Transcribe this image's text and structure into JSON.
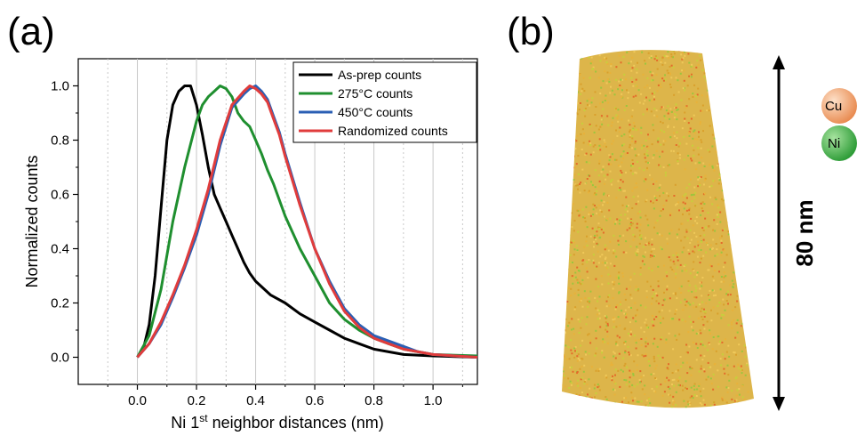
{
  "panels": {
    "a_label": "(a)",
    "b_label": "(b)"
  },
  "chart_data": {
    "type": "line",
    "xlabel_main": "Ni 1",
    "xlabel_sup": "st",
    "xlabel_rest": " neighbor distances (nm)",
    "ylabel": "Normalized counts",
    "xlim": [
      -0.2,
      1.15
    ],
    "ylim": [
      -0.1,
      1.1
    ],
    "xticks": [
      0.0,
      0.2,
      0.4,
      0.6,
      0.8,
      1.0
    ],
    "xtick_labels": [
      "0.0",
      "0.2",
      "0.4",
      "0.6",
      "0.8",
      "1.0"
    ],
    "yticks": [
      0.0,
      0.2,
      0.4,
      0.6,
      0.8,
      1.0
    ],
    "ytick_labels": [
      "0.0",
      "0.2",
      "0.4",
      "0.6",
      "0.8",
      "1.0"
    ],
    "grid": "vertical",
    "legend_position": "top-right",
    "series": [
      {
        "name": "As-prep counts",
        "color": "#000000",
        "x": [
          0.0,
          0.02,
          0.04,
          0.06,
          0.08,
          0.1,
          0.12,
          0.14,
          0.16,
          0.18,
          0.2,
          0.22,
          0.24,
          0.26,
          0.28,
          0.3,
          0.32,
          0.34,
          0.36,
          0.38,
          0.4,
          0.45,
          0.5,
          0.55,
          0.6,
          0.65,
          0.7,
          0.75,
          0.8,
          0.85,
          0.9,
          1.0,
          1.15
        ],
        "y": [
          0.0,
          0.03,
          0.12,
          0.3,
          0.55,
          0.8,
          0.93,
          0.98,
          1.0,
          1.0,
          0.93,
          0.82,
          0.7,
          0.6,
          0.55,
          0.5,
          0.45,
          0.4,
          0.35,
          0.31,
          0.28,
          0.23,
          0.2,
          0.16,
          0.13,
          0.1,
          0.07,
          0.05,
          0.03,
          0.02,
          0.01,
          0.005,
          0.0
        ]
      },
      {
        "name": "275°C counts",
        "color": "#1f8f2f",
        "x": [
          0.0,
          0.04,
          0.08,
          0.12,
          0.16,
          0.2,
          0.22,
          0.24,
          0.26,
          0.28,
          0.3,
          0.32,
          0.34,
          0.36,
          0.38,
          0.4,
          0.42,
          0.44,
          0.46,
          0.5,
          0.55,
          0.6,
          0.65,
          0.7,
          0.75,
          0.8,
          0.85,
          0.9,
          1.0,
          1.15
        ],
        "y": [
          0.0,
          0.08,
          0.25,
          0.5,
          0.7,
          0.87,
          0.93,
          0.96,
          0.98,
          1.0,
          0.99,
          0.96,
          0.9,
          0.87,
          0.85,
          0.8,
          0.75,
          0.69,
          0.64,
          0.52,
          0.4,
          0.3,
          0.2,
          0.14,
          0.1,
          0.07,
          0.05,
          0.03,
          0.01,
          0.005
        ]
      },
      {
        "name": "450°C counts",
        "color": "#2b5fb4",
        "x": [
          0.0,
          0.04,
          0.08,
          0.12,
          0.16,
          0.2,
          0.24,
          0.28,
          0.32,
          0.36,
          0.38,
          0.4,
          0.42,
          0.44,
          0.46,
          0.48,
          0.5,
          0.55,
          0.6,
          0.65,
          0.7,
          0.75,
          0.8,
          0.85,
          0.9,
          0.95,
          1.0,
          1.15
        ],
        "y": [
          0.0,
          0.05,
          0.12,
          0.22,
          0.33,
          0.45,
          0.6,
          0.78,
          0.92,
          0.97,
          0.99,
          1.0,
          0.98,
          0.95,
          0.89,
          0.83,
          0.75,
          0.57,
          0.4,
          0.28,
          0.18,
          0.12,
          0.08,
          0.06,
          0.04,
          0.02,
          0.01,
          0.0
        ]
      },
      {
        "name": "Randomized counts",
        "color": "#e03c3c",
        "x": [
          0.0,
          0.04,
          0.08,
          0.12,
          0.16,
          0.2,
          0.24,
          0.28,
          0.32,
          0.36,
          0.38,
          0.4,
          0.42,
          0.44,
          0.46,
          0.48,
          0.5,
          0.55,
          0.6,
          0.65,
          0.7,
          0.75,
          0.8,
          0.85,
          0.9,
          0.95,
          1.0,
          1.15
        ],
        "y": [
          0.0,
          0.05,
          0.13,
          0.23,
          0.34,
          0.47,
          0.62,
          0.8,
          0.93,
          0.98,
          1.0,
          0.99,
          0.97,
          0.94,
          0.88,
          0.82,
          0.74,
          0.56,
          0.4,
          0.27,
          0.17,
          0.11,
          0.07,
          0.05,
          0.03,
          0.02,
          0.01,
          0.0
        ]
      }
    ]
  },
  "panel_b": {
    "scale_label": "80 nm",
    "legend": [
      {
        "label": "Cu",
        "color": "#f4a06a"
      },
      {
        "label": "Ni",
        "color": "#3cb043"
      }
    ],
    "dot_colors": [
      "#e8b23a",
      "#d9a02c",
      "#c7cf3c",
      "#e46a2a",
      "#9bc53d",
      "#f0c95a"
    ]
  }
}
